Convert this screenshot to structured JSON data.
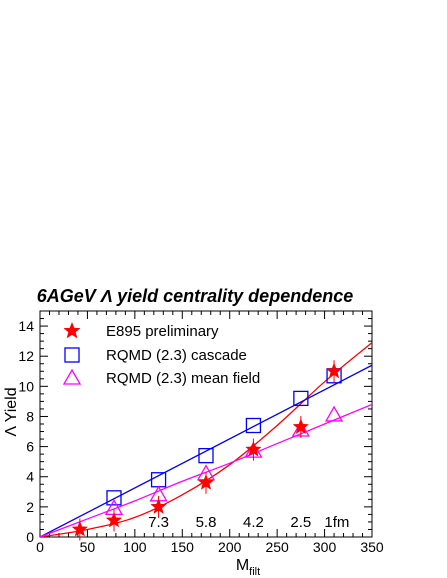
{
  "chart_data": {
    "type": "scatter",
    "title": "6AGeV Λ yield centrality dependence",
    "xlabel": "M",
    "xlabel_sub": "filt",
    "ylabel": "Λ Yield",
    "xlim": [
      0,
      350
    ],
    "ylim": [
      0,
      15
    ],
    "xticks": [
      0,
      50,
      100,
      150,
      200,
      250,
      300,
      350
    ],
    "yticks": [
      0,
      2,
      4,
      6,
      8,
      10,
      12,
      14
    ],
    "grid": false,
    "legend_position": "top-left",
    "series": [
      {
        "name": "E895 preliminary",
        "marker": "star",
        "color": "#ff0000",
        "x": [
          42,
          78,
          125,
          175,
          225,
          275,
          310
        ],
        "y": [
          0.5,
          1.1,
          2.0,
          3.6,
          5.8,
          7.3,
          11.0
        ]
      },
      {
        "name": "RQMD (2.3) cascade",
        "marker": "open-square",
        "color": "#0000ff",
        "x": [
          78,
          125,
          175,
          225,
          275,
          310
        ],
        "y": [
          2.6,
          3.8,
          5.4,
          7.4,
          9.2,
          10.7
        ]
      },
      {
        "name": "RQMD (2.3) mean field",
        "marker": "open-triangle",
        "color": "#ff00ff",
        "x": [
          78,
          125,
          175,
          225,
          275,
          310
        ],
        "y": [
          1.9,
          2.8,
          4.2,
          5.7,
          7.1,
          8.1
        ]
      }
    ],
    "fit_curves": [
      {
        "color": "#ff0000",
        "x": [
          0,
          50,
          100,
          150,
          200,
          250,
          300,
          350
        ],
        "y": [
          0,
          0.5,
          1.3,
          2.8,
          4.8,
          7.4,
          10.3,
          12.9
        ]
      },
      {
        "color": "#0000ff",
        "x": [
          0,
          350
        ],
        "y": [
          0,
          11.4
        ]
      },
      {
        "color": "#ff00ff",
        "x": [
          0,
          50,
          100,
          150,
          200,
          250,
          300,
          350
        ],
        "y": [
          0,
          1.2,
          2.4,
          3.7,
          4.9,
          6.2,
          7.5,
          8.8
        ]
      }
    ],
    "annotations": [
      {
        "text": "7.3",
        "x": 125
      },
      {
        "text": "5.8",
        "x": 175
      },
      {
        "text": "4.2",
        "x": 225
      },
      {
        "text": "2.5",
        "x": 275
      },
      {
        "text": "1fm",
        "x": 313
      }
    ]
  }
}
